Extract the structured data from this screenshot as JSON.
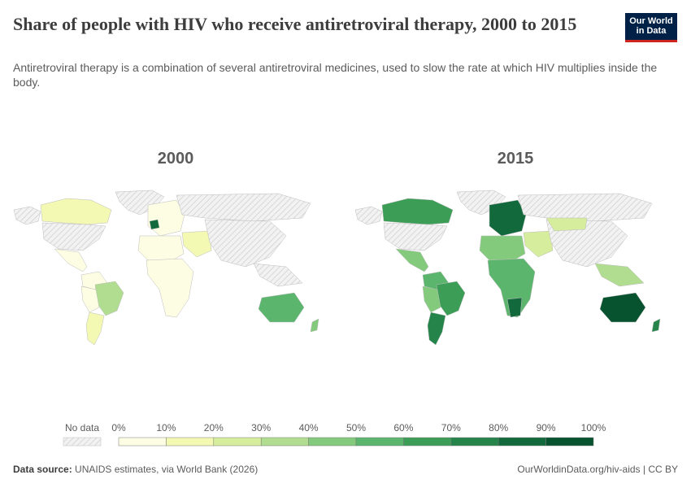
{
  "header": {
    "title": "Share of people with HIV who receive antiretroviral therapy, 2000 to 2015",
    "subtitle": "Antiretroviral therapy is a combination of several antiretroviral medicines, used to slow the rate at which HIV multiplies inside the body.",
    "logo_line1": "Our World",
    "logo_line2": "in Data"
  },
  "maps": [
    {
      "year_label": "2000"
    },
    {
      "year_label": "2015"
    }
  ],
  "legend": {
    "no_data_label": "No data",
    "ticks": [
      "0%",
      "10%",
      "20%",
      "30%",
      "40%",
      "50%",
      "60%",
      "70%",
      "80%",
      "90%",
      "100%"
    ],
    "colors": [
      "#fdfde4",
      "#f3f8b3",
      "#d5ed9d",
      "#b0dd90",
      "#84ca7d",
      "#5bb56c",
      "#3c9d57",
      "#25844a",
      "#12693b",
      "#08532f",
      "#033f24"
    ],
    "no_data_color": "#e8e8e8"
  },
  "footer": {
    "source_label": "Data source:",
    "source_text": "UNAIDS estimates, via World Bank (2026)",
    "url_text": "OurWorldinData.org/hiv-aids | CC BY"
  }
}
